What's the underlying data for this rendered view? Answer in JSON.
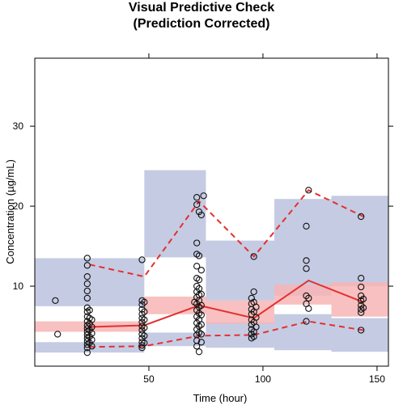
{
  "chart_data": {
    "type": "scatter",
    "title": "Visual Predictive Check",
    "subtitle": "(Prediction Corrected)",
    "xlabel": "Time (hour)",
    "ylabel": "Concentration (µg/mL)",
    "xlim": [
      0,
      155
    ],
    "ylim": [
      0,
      38.5
    ],
    "x_ticks": [
      50,
      100,
      150
    ],
    "y_ticks": [
      10,
      20,
      30
    ],
    "grid": false,
    "colors": {
      "pi_band": "#c5cbe3",
      "median_band": "#f7b5b5",
      "line": "#e33030",
      "points": "#111111"
    },
    "outer_prediction_bands": [
      {
        "x": [
          0,
          48
        ],
        "lower_y": [
          1.7,
          3.0
        ],
        "upper_y": [
          7.5,
          13.5
        ]
      },
      {
        "x": [
          48,
          75
        ],
        "lower_y": [
          2.5,
          4.2
        ],
        "upper_y": [
          13.6,
          24.5
        ]
      },
      {
        "x": [
          75,
          105
        ],
        "lower_y": [
          2.3,
          5.5
        ],
        "upper_y": [
          8.2,
          15.7
        ]
      },
      {
        "x": [
          105,
          130
        ],
        "lower_y": [
          2.0,
          6.5
        ],
        "upper_y": [
          8.8,
          20.9
        ]
      },
      {
        "x": [
          130,
          155
        ],
        "lower_y": [
          1.8,
          6.0
        ],
        "upper_y": [
          10.0,
          21.3
        ]
      }
    ],
    "median_bands": [
      {
        "x": [
          0,
          48
        ],
        "y": [
          4.3,
          5.6
        ]
      },
      {
        "x": [
          48,
          75
        ],
        "y": [
          6.5,
          8.7
        ]
      },
      {
        "x": [
          75,
          105
        ],
        "y": [
          5.3,
          8.2
        ]
      },
      {
        "x": [
          105,
          130
        ],
        "y": [
          7.7,
          10.2
        ]
      },
      {
        "x": [
          130,
          155
        ],
        "y": [
          6.2,
          10.5
        ]
      }
    ],
    "median_line": {
      "x": [
        24,
        48,
        72,
        96,
        120,
        144
      ],
      "y": [
        4.9,
        5.1,
        7.6,
        6.0,
        10.7,
        8.0
      ]
    },
    "percentile_lines": [
      {
        "x": [
          24,
          48,
          72,
          96,
          120,
          144
        ],
        "y": [
          12.7,
          11.2,
          20.6,
          13.7,
          22.0,
          18.7
        ]
      },
      {
        "x": [
          24,
          48,
          72,
          96,
          120,
          144
        ],
        "y": [
          2.4,
          2.5,
          3.8,
          3.9,
          5.6,
          4.5
        ]
      }
    ],
    "points": [
      {
        "x": 9,
        "y": 8.2
      },
      {
        "x": 10,
        "y": 4.0
      },
      {
        "x": 23,
        "y": 13.5
      },
      {
        "x": 23,
        "y": 12.6
      },
      {
        "x": 23,
        "y": 11.2
      },
      {
        "x": 23,
        "y": 10.3
      },
      {
        "x": 23,
        "y": 9.4
      },
      {
        "x": 23,
        "y": 8.5
      },
      {
        "x": 23,
        "y": 7.3
      },
      {
        "x": 23,
        "y": 6.8
      },
      {
        "x": 23,
        "y": 6.2
      },
      {
        "x": 23,
        "y": 5.6
      },
      {
        "x": 23,
        "y": 5.1
      },
      {
        "x": 23,
        "y": 4.7
      },
      {
        "x": 23,
        "y": 4.3
      },
      {
        "x": 23,
        "y": 3.9
      },
      {
        "x": 23,
        "y": 3.5
      },
      {
        "x": 23,
        "y": 3.1
      },
      {
        "x": 23,
        "y": 2.7
      },
      {
        "x": 23,
        "y": 2.3
      },
      {
        "x": 23,
        "y": 1.7
      },
      {
        "x": 24,
        "y": 7.0
      },
      {
        "x": 24,
        "y": 6.0
      },
      {
        "x": 24,
        "y": 5.3
      },
      {
        "x": 24,
        "y": 4.5
      },
      {
        "x": 24,
        "y": 3.7
      },
      {
        "x": 24,
        "y": 2.9
      },
      {
        "x": 25,
        "y": 5.8
      },
      {
        "x": 25,
        "y": 4.9
      },
      {
        "x": 25,
        "y": 4.1
      },
      {
        "x": 25,
        "y": 3.3
      },
      {
        "x": 25,
        "y": 2.5
      },
      {
        "x": 47,
        "y": 13.3
      },
      {
        "x": 47,
        "y": 8.2
      },
      {
        "x": 47,
        "y": 7.7
      },
      {
        "x": 47,
        "y": 7.1
      },
      {
        "x": 47,
        "y": 6.5
      },
      {
        "x": 47,
        "y": 6.0
      },
      {
        "x": 47,
        "y": 5.5
      },
      {
        "x": 47,
        "y": 5.0
      },
      {
        "x": 47,
        "y": 4.5
      },
      {
        "x": 47,
        "y": 4.0
      },
      {
        "x": 47,
        "y": 3.5
      },
      {
        "x": 47,
        "y": 3.0
      },
      {
        "x": 47,
        "y": 2.6
      },
      {
        "x": 47,
        "y": 2.3
      },
      {
        "x": 48,
        "y": 8.0
      },
      {
        "x": 48,
        "y": 6.8
      },
      {
        "x": 48,
        "y": 5.8
      },
      {
        "x": 48,
        "y": 4.8
      },
      {
        "x": 48,
        "y": 3.8
      },
      {
        "x": 48,
        "y": 2.9
      },
      {
        "x": 70,
        "y": 8.0
      },
      {
        "x": 71,
        "y": 21.1
      },
      {
        "x": 71,
        "y": 20.2
      },
      {
        "x": 71,
        "y": 15.4
      },
      {
        "x": 71,
        "y": 14.0
      },
      {
        "x": 71,
        "y": 12.5
      },
      {
        "x": 71,
        "y": 11.0
      },
      {
        "x": 71,
        "y": 10.0
      },
      {
        "x": 71,
        "y": 9.3
      },
      {
        "x": 71,
        "y": 8.6
      },
      {
        "x": 71,
        "y": 7.8
      },
      {
        "x": 71,
        "y": 7.0
      },
      {
        "x": 71,
        "y": 6.2
      },
      {
        "x": 71,
        "y": 5.4
      },
      {
        "x": 71,
        "y": 4.6
      },
      {
        "x": 71,
        "y": 3.9
      },
      {
        "x": 71,
        "y": 3.2
      },
      {
        "x": 71,
        "y": 2.5
      },
      {
        "x": 72,
        "y": 19.3
      },
      {
        "x": 72,
        "y": 13.8
      },
      {
        "x": 72,
        "y": 10.8
      },
      {
        "x": 72,
        "y": 9.7
      },
      {
        "x": 72,
        "y": 8.9
      },
      {
        "x": 72,
        "y": 8.2
      },
      {
        "x": 72,
        "y": 7.4
      },
      {
        "x": 72,
        "y": 6.6
      },
      {
        "x": 72,
        "y": 5.8
      },
      {
        "x": 72,
        "y": 5.0
      },
      {
        "x": 72,
        "y": 4.2
      },
      {
        "x": 72,
        "y": 1.8
      },
      {
        "x": 73,
        "y": 18.9
      },
      {
        "x": 73,
        "y": 12.0
      },
      {
        "x": 73,
        "y": 9.0
      },
      {
        "x": 73,
        "y": 7.6
      },
      {
        "x": 73,
        "y": 6.4
      },
      {
        "x": 73,
        "y": 5.2
      },
      {
        "x": 73,
        "y": 4.0
      },
      {
        "x": 73,
        "y": 3.0
      },
      {
        "x": 74,
        "y": 21.3
      },
      {
        "x": 95,
        "y": 8.5
      },
      {
        "x": 95,
        "y": 7.8
      },
      {
        "x": 95,
        "y": 7.1
      },
      {
        "x": 95,
        "y": 6.5
      },
      {
        "x": 95,
        "y": 5.8
      },
      {
        "x": 95,
        "y": 5.2
      },
      {
        "x": 95,
        "y": 4.6
      },
      {
        "x": 95,
        "y": 4.0
      },
      {
        "x": 95,
        "y": 3.5
      },
      {
        "x": 96,
        "y": 13.7
      },
      {
        "x": 96,
        "y": 9.3
      },
      {
        "x": 96,
        "y": 8.0
      },
      {
        "x": 96,
        "y": 6.8
      },
      {
        "x": 96,
        "y": 5.5
      },
      {
        "x": 96,
        "y": 4.3
      },
      {
        "x": 96,
        "y": 3.7
      },
      {
        "x": 97,
        "y": 7.4
      },
      {
        "x": 97,
        "y": 6.1
      },
      {
        "x": 97,
        "y": 4.9
      },
      {
        "x": 119,
        "y": 17.5
      },
      {
        "x": 119,
        "y": 13.2
      },
      {
        "x": 119,
        "y": 12.2
      },
      {
        "x": 119,
        "y": 8.8
      },
      {
        "x": 119,
        "y": 7.8
      },
      {
        "x": 119,
        "y": 5.6
      },
      {
        "x": 120,
        "y": 22.0
      },
      {
        "x": 120,
        "y": 8.5
      },
      {
        "x": 120,
        "y": 7.2
      },
      {
        "x": 143,
        "y": 18.7
      },
      {
        "x": 143,
        "y": 11.0
      },
      {
        "x": 143,
        "y": 9.9
      },
      {
        "x": 143,
        "y": 8.8
      },
      {
        "x": 143,
        "y": 8.2
      },
      {
        "x": 143,
        "y": 7.6
      },
      {
        "x": 143,
        "y": 7.1
      },
      {
        "x": 143,
        "y": 6.7
      },
      {
        "x": 143,
        "y": 4.5
      },
      {
        "x": 144,
        "y": 8.4
      },
      {
        "x": 144,
        "y": 7.3
      }
    ]
  }
}
